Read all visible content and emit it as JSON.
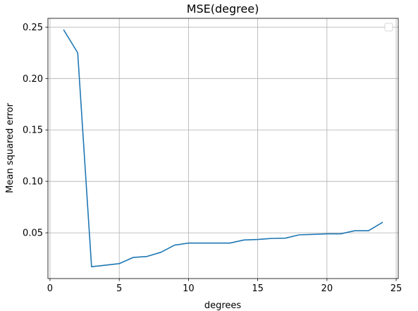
{
  "chart_data": {
    "type": "line",
    "title": "MSE(degree)",
    "xlabel": "degrees",
    "ylabel": "Mean squared error",
    "xlim": [
      -0.15,
      25.15
    ],
    "ylim": [
      0.0055,
      0.2585
    ],
    "xticks": [
      0,
      5,
      10,
      15,
      20,
      25
    ],
    "xtick_labels": [
      "0",
      "5",
      "10",
      "15",
      "20",
      "25"
    ],
    "yticks": [
      0.05,
      0.1,
      0.15,
      0.2,
      0.25
    ],
    "ytick_labels": [
      "0.05",
      "0.10",
      "0.15",
      "0.20",
      "0.25"
    ],
    "grid": true,
    "legend": "top-right",
    "series": [
      {
        "color": "#1f77b4",
        "x": [
          1,
          2,
          3,
          4,
          5,
          6,
          7,
          8,
          9,
          10,
          11,
          12,
          13,
          14,
          15,
          16,
          17,
          18,
          19,
          20,
          21,
          22,
          23,
          24
        ],
        "values": [
          0.247,
          0.225,
          0.017,
          0.0185,
          0.02,
          0.026,
          0.027,
          0.031,
          0.038,
          0.04,
          0.04,
          0.04,
          0.04,
          0.043,
          0.0435,
          0.0445,
          0.0448,
          0.048,
          0.0485,
          0.049,
          0.049,
          0.052,
          0.052,
          0.06
        ]
      }
    ]
  }
}
